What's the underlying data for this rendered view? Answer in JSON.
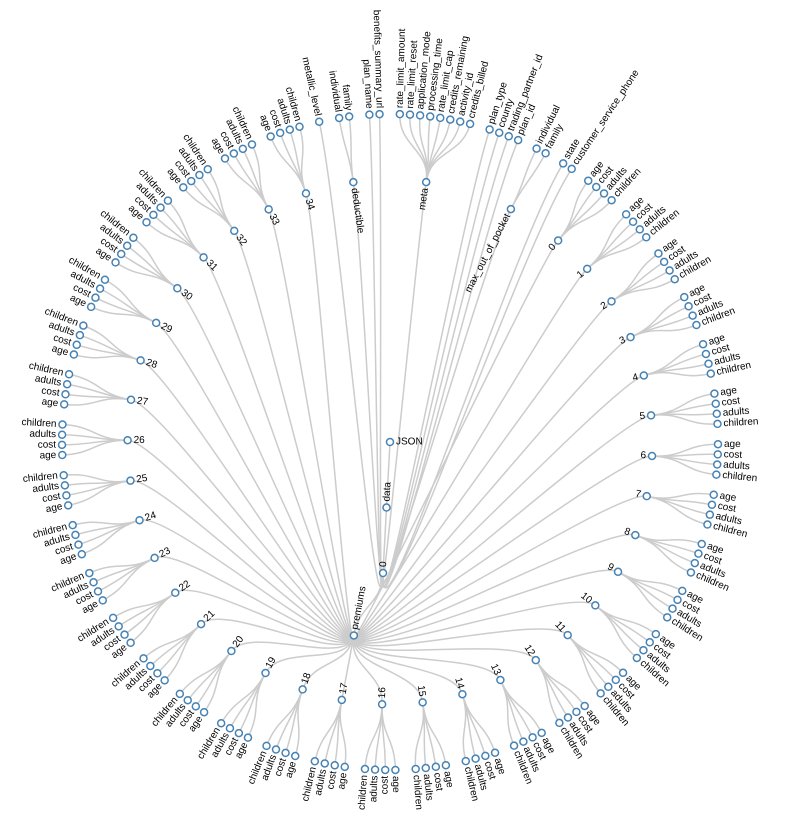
{
  "tree": {
    "name": "JSON",
    "children": [
      {
        "name": "data",
        "children": [
          {
            "name": "0",
            "children": [
              {
                "name": "meta",
                "children": [
                  "rate_limit_amount",
                  "rate_limit_reset",
                  "application_mode",
                  "processing_time",
                  "rate_limit_cap",
                  "credits_remaining",
                  "activity_id",
                  "credits_billed"
                ]
              },
              "plan_type",
              "county",
              "trading_partner_id",
              "plan_id",
              {
                "name": "max_out_of_pocket",
                "children": [
                  "individual",
                  "family"
                ]
              },
              "state",
              "customer_service_phone",
              {
                "name": "premiums",
                "children": [
                  {
                    "name": "0",
                    "children": [
                      "age",
                      "cost",
                      "adults",
                      "children"
                    ]
                  },
                  {
                    "name": "1",
                    "children": [
                      "age",
                      "cost",
                      "adults",
                      "children"
                    ]
                  },
                  {
                    "name": "2",
                    "children": [
                      "age",
                      "cost",
                      "adults",
                      "children"
                    ]
                  },
                  {
                    "name": "3",
                    "children": [
                      "age",
                      "cost",
                      "adults",
                      "children"
                    ]
                  },
                  {
                    "name": "4",
                    "children": [
                      "age",
                      "cost",
                      "adults",
                      "children"
                    ]
                  },
                  {
                    "name": "5",
                    "children": [
                      "age",
                      "cost",
                      "adults",
                      "children"
                    ]
                  },
                  {
                    "name": "6",
                    "children": [
                      "age",
                      "cost",
                      "adults",
                      "children"
                    ]
                  },
                  {
                    "name": "7",
                    "children": [
                      "age",
                      "cost",
                      "adults",
                      "children"
                    ]
                  },
                  {
                    "name": "8",
                    "children": [
                      "age",
                      "cost",
                      "adults",
                      "children"
                    ]
                  },
                  {
                    "name": "9",
                    "children": [
                      "age",
                      "cost",
                      "adults",
                      "children"
                    ]
                  },
                  {
                    "name": "10",
                    "children": [
                      "age",
                      "cost",
                      "adults",
                      "children"
                    ]
                  },
                  {
                    "name": "11",
                    "children": [
                      "age",
                      "cost",
                      "adults",
                      "children"
                    ]
                  },
                  {
                    "name": "12",
                    "children": [
                      "age",
                      "cost",
                      "adults",
                      "children"
                    ]
                  },
                  {
                    "name": "13",
                    "children": [
                      "age",
                      "cost",
                      "adults",
                      "children"
                    ]
                  },
                  {
                    "name": "14",
                    "children": [
                      "age",
                      "cost",
                      "adults",
                      "children"
                    ]
                  },
                  {
                    "name": "15",
                    "children": [
                      "age",
                      "cost",
                      "adults",
                      "children"
                    ]
                  },
                  {
                    "name": "16",
                    "children": [
                      "age",
                      "cost",
                      "adults",
                      "children"
                    ]
                  },
                  {
                    "name": "17",
                    "children": [
                      "age",
                      "cost",
                      "adults",
                      "children"
                    ]
                  },
                  {
                    "name": "18",
                    "children": [
                      "age",
                      "cost",
                      "adults",
                      "children"
                    ]
                  },
                  {
                    "name": "19",
                    "children": [
                      "age",
                      "cost",
                      "adults",
                      "children"
                    ]
                  },
                  {
                    "name": "20",
                    "children": [
                      "age",
                      "cost",
                      "adults",
                      "children"
                    ]
                  },
                  {
                    "name": "21",
                    "children": [
                      "age",
                      "cost",
                      "adults",
                      "children"
                    ]
                  },
                  {
                    "name": "22",
                    "children": [
                      "age",
                      "cost",
                      "adults",
                      "children"
                    ]
                  },
                  {
                    "name": "23",
                    "children": [
                      "age",
                      "cost",
                      "adults",
                      "children"
                    ]
                  },
                  {
                    "name": "24",
                    "children": [
                      "age",
                      "cost",
                      "adults",
                      "children"
                    ]
                  },
                  {
                    "name": "25",
                    "children": [
                      "age",
                      "cost",
                      "adults",
                      "children"
                    ]
                  },
                  {
                    "name": "26",
                    "children": [
                      "age",
                      "cost",
                      "adults",
                      "children"
                    ]
                  },
                  {
                    "name": "27",
                    "children": [
                      "age",
                      "cost",
                      "adults",
                      "children"
                    ]
                  },
                  {
                    "name": "28",
                    "children": [
                      "age",
                      "cost",
                      "adults",
                      "children"
                    ]
                  },
                  {
                    "name": "29",
                    "children": [
                      "age",
                      "cost",
                      "adults",
                      "children"
                    ]
                  },
                  {
                    "name": "30",
                    "children": [
                      "age",
                      "cost",
                      "adults",
                      "children"
                    ]
                  },
                  {
                    "name": "31",
                    "children": [
                      "age",
                      "cost",
                      "adults",
                      "children"
                    ]
                  },
                  {
                    "name": "32",
                    "children": [
                      "age",
                      "cost",
                      "adults",
                      "children"
                    ]
                  },
                  {
                    "name": "33",
                    "children": [
                      "age",
                      "cost",
                      "adults",
                      "children"
                    ]
                  },
                  {
                    "name": "34",
                    "children": [
                      "age",
                      "cost",
                      "adults",
                      "children"
                    ]
                  }
                ]
              },
              "metallic_level",
              {
                "name": "deductible",
                "children": [
                  "individual",
                  "family"
                ]
              },
              "plan_name",
              "benefits_summary_url"
            ]
          }
        ]
      }
    ]
  }
}
